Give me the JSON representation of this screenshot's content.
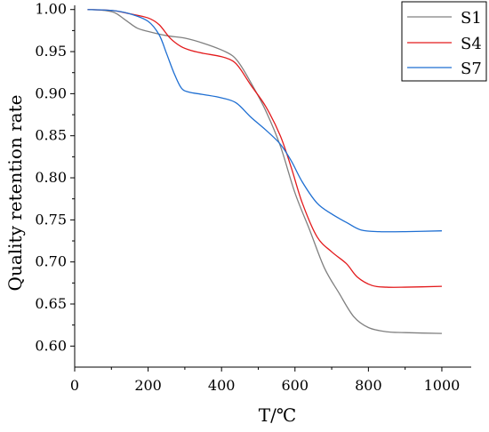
{
  "chart_data": {
    "type": "line",
    "xlabel": "T/℃",
    "ylabel": "Quality retention rate",
    "xlim": [
      0,
      1080
    ],
    "ylim": [
      0.575,
      1.005
    ],
    "x_ticks": [
      0,
      200,
      400,
      600,
      800,
      1000
    ],
    "x_tick_labels": [
      "0",
      "200",
      "400",
      "600",
      "800",
      "1000"
    ],
    "y_ticks": [
      0.6,
      0.65,
      0.7,
      0.75,
      0.8,
      0.85,
      0.9,
      0.95,
      1.0
    ],
    "y_tick_labels": [
      "0.60",
      "0.65",
      "0.70",
      "0.75",
      "0.80",
      "0.85",
      "0.90",
      "0.95",
      "1.00"
    ],
    "grid": false,
    "legend_position": "top-right",
    "series": [
      {
        "name": "S1",
        "color": "#808080",
        "points": [
          [
            35,
            1.0
          ],
          [
            80,
            0.999
          ],
          [
            110,
            0.996
          ],
          [
            140,
            0.987
          ],
          [
            170,
            0.978
          ],
          [
            200,
            0.974
          ],
          [
            250,
            0.969
          ],
          [
            300,
            0.966
          ],
          [
            350,
            0.96
          ],
          [
            400,
            0.952
          ],
          [
            430,
            0.945
          ],
          [
            450,
            0.935
          ],
          [
            480,
            0.913
          ],
          [
            520,
            0.88
          ],
          [
            560,
            0.838
          ],
          [
            600,
            0.782
          ],
          [
            640,
            0.738
          ],
          [
            680,
            0.693
          ],
          [
            720,
            0.663
          ],
          [
            760,
            0.635
          ],
          [
            800,
            0.622
          ],
          [
            850,
            0.617
          ],
          [
            900,
            0.616
          ],
          [
            1000,
            0.615
          ]
        ]
      },
      {
        "name": "S4",
        "color": "#e31a1c",
        "points": [
          [
            35,
            1.0
          ],
          [
            100,
            0.999
          ],
          [
            150,
            0.995
          ],
          [
            200,
            0.99
          ],
          [
            230,
            0.982
          ],
          [
            260,
            0.966
          ],
          [
            290,
            0.956
          ],
          [
            320,
            0.951
          ],
          [
            350,
            0.948
          ],
          [
            400,
            0.944
          ],
          [
            430,
            0.939
          ],
          [
            450,
            0.93
          ],
          [
            480,
            0.91
          ],
          [
            520,
            0.885
          ],
          [
            560,
            0.85
          ],
          [
            590,
            0.812
          ],
          [
            620,
            0.77
          ],
          [
            660,
            0.73
          ],
          [
            700,
            0.712
          ],
          [
            740,
            0.698
          ],
          [
            770,
            0.682
          ],
          [
            810,
            0.672
          ],
          [
            850,
            0.67
          ],
          [
            900,
            0.67
          ],
          [
            1000,
            0.671
          ]
        ]
      },
      {
        "name": "S7",
        "color": "#1f6fd2",
        "points": [
          [
            35,
            1.0
          ],
          [
            100,
            0.999
          ],
          [
            150,
            0.995
          ],
          [
            200,
            0.986
          ],
          [
            230,
            0.97
          ],
          [
            250,
            0.948
          ],
          [
            270,
            0.925
          ],
          [
            290,
            0.907
          ],
          [
            310,
            0.902
          ],
          [
            350,
            0.899
          ],
          [
            400,
            0.895
          ],
          [
            440,
            0.889
          ],
          [
            480,
            0.872
          ],
          [
            520,
            0.857
          ],
          [
            560,
            0.84
          ],
          [
            590,
            0.82
          ],
          [
            620,
            0.795
          ],
          [
            660,
            0.77
          ],
          [
            700,
            0.757
          ],
          [
            740,
            0.747
          ],
          [
            780,
            0.738
          ],
          [
            830,
            0.736
          ],
          [
            900,
            0.736
          ],
          [
            1000,
            0.737
          ]
        ]
      }
    ]
  }
}
